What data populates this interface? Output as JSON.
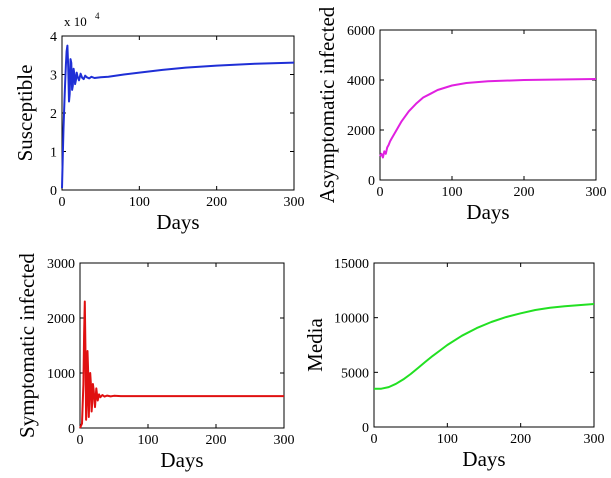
{
  "chart_data": [
    {
      "type": "line",
      "title": "",
      "xlabel": "Days",
      "ylabel": "Susceptible",
      "xlim": [
        0,
        300
      ],
      "ylim": [
        0,
        4
      ],
      "xticks": [
        0,
        100,
        200,
        300
      ],
      "yticks": [
        0,
        1,
        2,
        3,
        4
      ],
      "y_multiplier": {
        "base": "x 10",
        "exponent": "4"
      },
      "grid": false,
      "color": "#1f2fd6",
      "x": [
        0,
        1,
        2,
        3,
        4,
        5,
        6,
        7,
        8,
        9,
        10,
        11,
        12,
        13,
        14,
        15,
        16,
        17,
        18,
        19,
        20,
        22,
        24,
        26,
        28,
        30,
        32,
        35,
        38,
        42,
        46,
        50,
        60,
        80,
        100,
        130,
        160,
        200,
        250,
        300
      ],
      "series": [
        {
          "values": [
            0.05,
            0.9,
            1.6,
            2.2,
            2.75,
            3.25,
            3.6,
            3.75,
            3.2,
            2.3,
            2.5,
            3.4,
            3.3,
            2.6,
            2.7,
            3.15,
            3.0,
            2.75,
            2.85,
            3.05,
            2.95,
            2.85,
            3.02,
            2.92,
            2.88,
            2.97,
            2.93,
            2.9,
            2.94,
            2.91,
            2.92,
            2.93,
            2.94,
            3.0,
            3.05,
            3.12,
            3.18,
            3.23,
            3.28,
            3.31
          ]
        }
      ]
    },
    {
      "type": "line",
      "title": "",
      "xlabel": "Days",
      "ylabel": "Asymptomatic infected",
      "xlim": [
        0,
        300
      ],
      "ylim": [
        0,
        6000
      ],
      "xticks": [
        0,
        100,
        200,
        300
      ],
      "yticks": [
        0,
        2000,
        4000,
        6000
      ],
      "grid": false,
      "color": "#e020e0",
      "x": [
        0,
        2,
        4,
        6,
        8,
        10,
        12,
        14,
        16,
        20,
        25,
        30,
        40,
        50,
        60,
        70,
        80,
        100,
        120,
        150,
        200,
        250,
        300
      ],
      "series": [
        {
          "values": [
            950,
            1050,
            900,
            1150,
            1050,
            1300,
            1400,
            1550,
            1650,
            1850,
            2100,
            2350,
            2750,
            3050,
            3300,
            3450,
            3600,
            3780,
            3880,
            3950,
            4000,
            4020,
            4040
          ]
        }
      ]
    },
    {
      "type": "line",
      "title": "",
      "xlabel": "Days",
      "ylabel": "Symptomatic infected",
      "xlim": [
        0,
        300
      ],
      "ylim": [
        0,
        3000
      ],
      "xticks": [
        0,
        100,
        200,
        300
      ],
      "yticks": [
        0,
        1000,
        2000,
        3000
      ],
      "grid": false,
      "color": "#e01010",
      "x": [
        0,
        3,
        5,
        6,
        7,
        8,
        9,
        10,
        11,
        12,
        13,
        14,
        15,
        16,
        17,
        18,
        19,
        20,
        22,
        24,
        26,
        28,
        30,
        33,
        36,
        40,
        45,
        50,
        60,
        100,
        150,
        200,
        250,
        300
      ],
      "series": [
        {
          "values": [
            0,
            80,
            800,
            1700,
            2300,
            1500,
            150,
            500,
            1400,
            1000,
            200,
            650,
            1000,
            800,
            300,
            450,
            800,
            700,
            380,
            720,
            500,
            610,
            560,
            600,
            570,
            590,
            575,
            585,
            580,
            580,
            580,
            580,
            580,
            580
          ]
        }
      ]
    },
    {
      "type": "line",
      "title": "",
      "xlabel": "Days",
      "ylabel": "Media",
      "xlim": [
        0,
        300
      ],
      "ylim": [
        0,
        15000
      ],
      "xticks": [
        0,
        100,
        200,
        300
      ],
      "yticks": [
        0,
        5000,
        10000,
        15000
      ],
      "grid": false,
      "color": "#22e022",
      "x": [
        0,
        10,
        20,
        30,
        40,
        50,
        60,
        70,
        80,
        90,
        100,
        120,
        140,
        160,
        180,
        200,
        220,
        240,
        260,
        280,
        300
      ],
      "series": [
        {
          "values": [
            3500,
            3500,
            3650,
            3950,
            4350,
            4850,
            5400,
            5950,
            6500,
            7000,
            7500,
            8350,
            9050,
            9600,
            10050,
            10400,
            10700,
            10900,
            11050,
            11150,
            11250
          ]
        }
      ]
    }
  ]
}
